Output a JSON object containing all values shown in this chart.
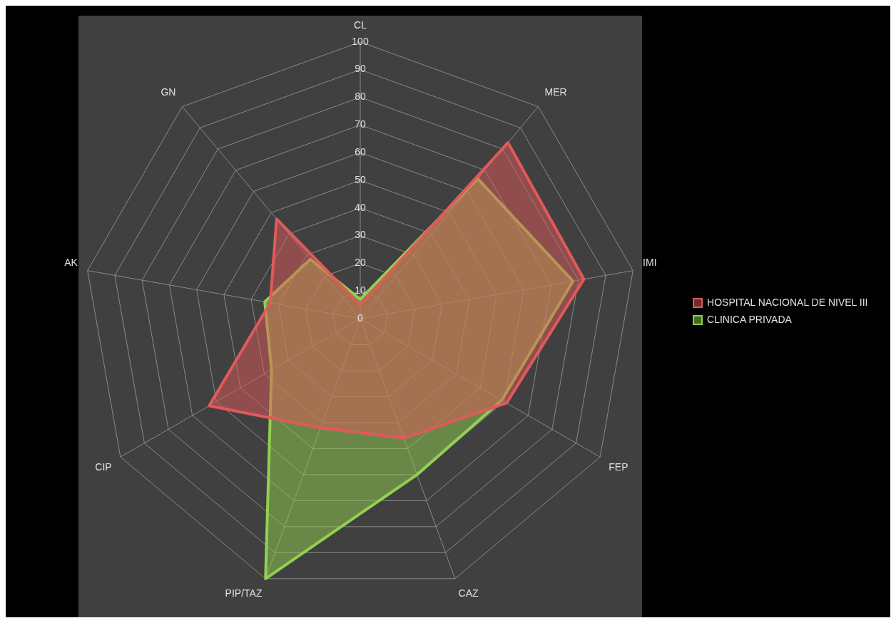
{
  "chart_data": {
    "type": "radar",
    "categories": [
      "CL",
      "MER",
      "IMI",
      "FEP",
      "CAZ",
      "PIP/TAZ",
      "CIP",
      "AK",
      "GN"
    ],
    "series": [
      {
        "name": "HOSPITAL NACIONAL DE NIVEL III",
        "color": "#e05a5a",
        "values": [
          5,
          83,
          82,
          61,
          46,
          42,
          63,
          33,
          47
        ]
      },
      {
        "name": "CLINICA PRIVADA",
        "color": "#92d050",
        "values": [
          7,
          66,
          78,
          59,
          60,
          100,
          37,
          35,
          28
        ]
      }
    ],
    "ylim": [
      0,
      100
    ],
    "yticks": [
      0,
      10,
      20,
      30,
      40,
      50,
      60,
      70,
      80,
      90,
      100
    ],
    "grid": true,
    "legend": "right",
    "marker": "none",
    "line_style": "solid"
  }
}
